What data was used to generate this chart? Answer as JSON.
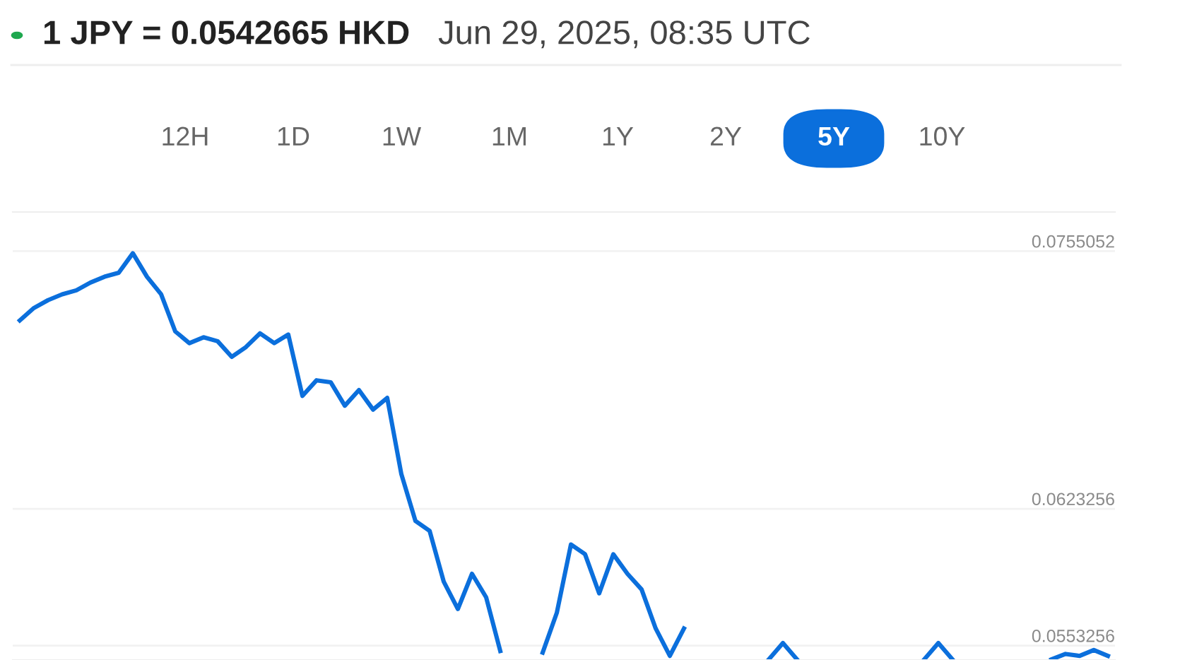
{
  "chart_data": {
    "type": "line",
    "title": "1 JPY = 0.0542665 HKD",
    "subtitle": "Jun 29, 2025, 08:35 UTC",
    "annotations": [
      "12H",
      "1D",
      "1W",
      "1M",
      "1Y",
      "2Y",
      "5Y",
      "10Y"
    ],
    "categories": [
      null,
      null,
      null,
      null,
      null,
      null,
      null,
      null,
      null,
      null,
      null,
      null,
      null,
      null,
      null,
      null,
      null,
      null,
      null,
      null,
      null,
      null,
      null,
      null,
      null,
      null,
      null,
      null,
      null,
      null,
      null,
      null,
      null,
      null,
      null,
      null,
      null,
      null,
      null,
      null,
      null,
      null,
      null,
      null,
      null,
      null,
      null,
      null,
      null,
      null,
      null,
      null,
      null,
      null,
      null,
      null,
      null,
      null,
      null,
      null,
      null,
      null,
      null,
      null,
      null,
      null,
      null,
      null,
      null,
      null,
      null,
      null,
      null,
      null,
      null,
      null,
      null,
      null
    ],
    "series": [
      {
        "color": "#0b6fdc",
        "values": [
          0.07196,
          0.0726,
          0.073,
          0.0733,
          0.0735,
          0.0739,
          0.0742,
          0.0744,
          0.0754,
          0.0742,
          0.0733,
          0.0714,
          0.0708,
          0.0711,
          0.0709,
          0.0701,
          0.0706,
          0.0713,
          0.0708,
          0.07124,
          0.0681,
          0.0689,
          0.0688,
          0.0676,
          0.0684,
          0.0674,
          0.068,
          0.0641,
          0.0617,
          0.0612,
          0.0586,
          0.0572,
          0.059,
          0.0578,
          0.05505,
          null,
          null,
          0.05497,
          0.057,
          0.0605,
          0.06,
          0.058,
          0.06,
          0.059,
          0.0582,
          0.0562,
          0.0548,
          0.0562,
          null,
          null,
          null,
          null,
          null,
          0.05462,
          0.05546,
          0.05462,
          null,
          null,
          null,
          null,
          null,
          null,
          null,
          null,
          0.05462,
          0.05546,
          0.05462,
          null,
          null,
          null,
          null,
          null,
          null,
          0.05462,
          0.0549,
          0.0548,
          0.0551,
          0.0548
        ]
      }
    ],
    "ylim": [
      0.05459,
      0.07751
    ],
    "yticks": [
      0.0755052,
      0.0623256,
      0.0553256
    ],
    "grid": "y",
    "legend": false,
    "marker": "none",
    "line_style": "solid"
  }
}
